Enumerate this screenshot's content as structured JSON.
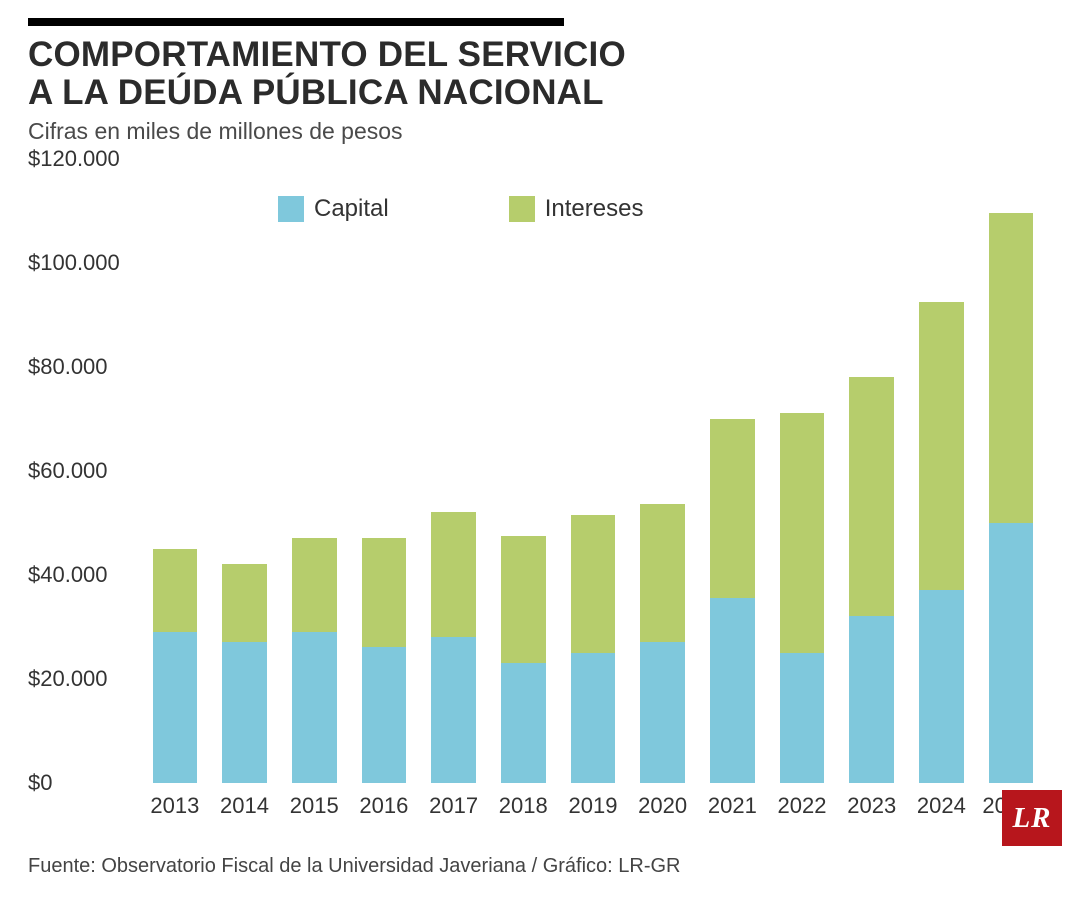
{
  "title_line1": "COMPORTAMIENTO DEL SERVICIO",
  "title_line2": "A LA DEÚDA PÚBLICA NACIONAL",
  "subtitle": "Cifras en miles de millones de pesos",
  "source": "Fuente: Observatorio Fiscal de la Universidad Javeriana / Gráfico: LR-GR",
  "logo_text": "LR",
  "logo_bg": "#b7161c",
  "chart": {
    "type": "stacked-bar",
    "background_color": "#ffffff",
    "ylim": [
      0,
      120000
    ],
    "ytick_step": 20000,
    "ytick_labels": [
      "$0",
      "$20.000",
      "$40.000",
      "$60.000",
      "$80.000",
      "$100.000",
      "$120.000"
    ],
    "categories": [
      "2013",
      "2014",
      "2015",
      "2016",
      "2017",
      "2018",
      "2019",
      "2020",
      "2021",
      "2022",
      "2023",
      "2024",
      "2025*"
    ],
    "series": [
      {
        "name": "Capital",
        "color": "#7fc8dc",
        "values": [
          29000,
          27000,
          29000,
          26000,
          28000,
          23000,
          25000,
          27000,
          35500,
          25000,
          32000,
          37000,
          50000
        ]
      },
      {
        "name": "Intereses",
        "color": "#b6cd6c",
        "values": [
          16000,
          15000,
          18000,
          21000,
          24000,
          24500,
          26500,
          26500,
          34500,
          46000,
          46000,
          55500,
          59500
        ]
      }
    ],
    "bar_width_pct": 64,
    "axis_fontsize": 22,
    "legend_fontsize": 24,
    "text_color": "#333333"
  }
}
